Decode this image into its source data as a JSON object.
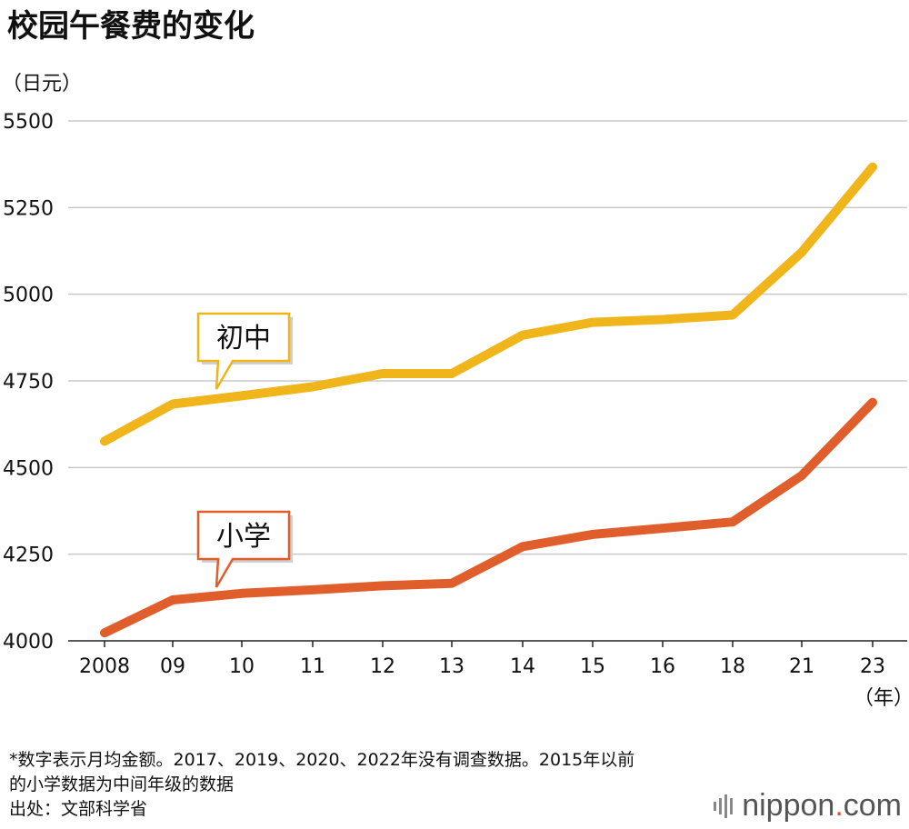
{
  "chart_data": {
    "type": "line",
    "title": "校园午餐费的变化",
    "ylabel": "（日元）",
    "xlabel": "（年）",
    "categories": [
      "2008",
      "09",
      "10",
      "11",
      "12",
      "13",
      "14",
      "15",
      "16",
      "18",
      "21",
      "23"
    ],
    "ylim": [
      4000,
      5500
    ],
    "yticks": [
      4000,
      4250,
      4500,
      4750,
      5000,
      5250,
      5500
    ],
    "grid": true,
    "series": [
      {
        "name": "初中",
        "color": "#f0b51a",
        "values": [
          4576,
          4683,
          4707,
          4733,
          4771,
          4771,
          4882,
          4919,
          4927,
          4940,
          5121,
          5367
        ]
      },
      {
        "name": "小学",
        "color": "#e05e2c",
        "values": [
          4023,
          4118,
          4137,
          4147,
          4159,
          4166,
          4272,
          4307,
          4325,
          4343,
          4477,
          4688
        ]
      }
    ]
  },
  "notes": {
    "line1": "*数字表示月均金额。2017、2019、2020、2022年没有调查数据。2015年以前",
    "line2": "的小学数据为中间年级的数据",
    "line3": "出处：文部科学省"
  },
  "logo": {
    "name": "nippon",
    "dot": ".",
    "suffix": "com"
  }
}
